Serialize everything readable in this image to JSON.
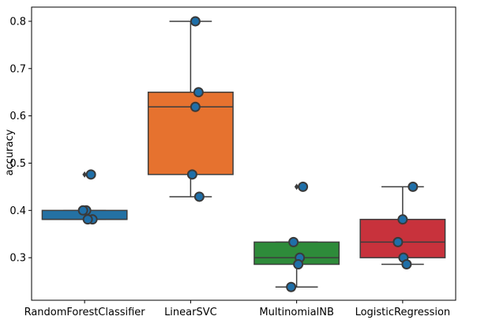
{
  "chart_data": {
    "type": "box",
    "ylabel": "accuracy",
    "xlabel": "",
    "ylim": [
      0.21,
      0.83
    ],
    "yticks": [
      0.3,
      0.4,
      0.5,
      0.6,
      0.7,
      0.8
    ],
    "ytick_labels": [
      "0.3",
      "0.4",
      "0.5",
      "0.6",
      "0.7",
      "0.8"
    ],
    "categories": [
      "RandomForestClassifier",
      "LinearSVC",
      "MultinomialNB",
      "LogisticRegression"
    ],
    "boxes": [
      {
        "name": "RandomForestClassifier",
        "color": "#2471a3",
        "q1": 0.381,
        "median": 0.381,
        "q3": 0.4,
        "whisker_low": 0.381,
        "whisker_high": 0.4,
        "fliers": [
          0.476
        ],
        "points": [
          0.476,
          0.4,
          0.4,
          0.381,
          0.381
        ]
      },
      {
        "name": "LinearSVC",
        "color": "#e6722f",
        "q1": 0.476,
        "median": 0.619,
        "q3": 0.65,
        "whisker_low": 0.429,
        "whisker_high": 0.8,
        "fliers": [],
        "points": [
          0.8,
          0.65,
          0.619,
          0.476,
          0.429
        ]
      },
      {
        "name": "MultinomialNB",
        "color": "#2e8b3a",
        "q1": 0.286,
        "median": 0.3,
        "q3": 0.333,
        "whisker_low": 0.238,
        "whisker_high": 0.333,
        "fliers": [
          0.45
        ],
        "points": [
          0.45,
          0.333,
          0.3,
          0.286,
          0.238
        ]
      },
      {
        "name": "LogisticRegression",
        "color": "#c8323c",
        "q1": 0.3,
        "median": 0.333,
        "q3": 0.381,
        "whisker_low": 0.286,
        "whisker_high": 0.45,
        "fliers": [],
        "points": [
          0.45,
          0.381,
          0.333,
          0.3,
          0.286
        ]
      }
    ],
    "point_color": "#1f6fa8",
    "point_edge": "#3a3a3a",
    "grid": false,
    "legend": "none"
  }
}
